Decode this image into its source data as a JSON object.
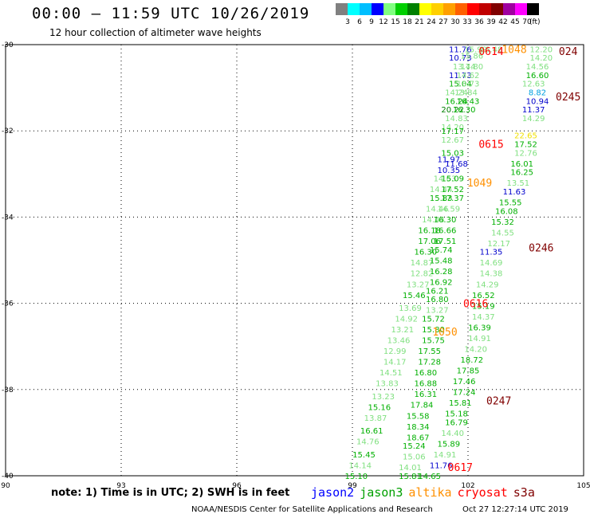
{
  "title": "00:00 – 11:59 UTC 10/26/2019",
  "subtitle": "12 hour collection of altimeter wave heights",
  "color_scale": {
    "labels": [
      "3",
      "6",
      "9",
      "12",
      "15",
      "18",
      "21",
      "24",
      "27",
      "30",
      "33",
      "36",
      "39",
      "42",
      "45",
      "70"
    ],
    "unit": "(ft)",
    "colors": [
      "#808080",
      "#00ffff",
      "#00bfff",
      "#0000ff",
      "#80ff80",
      "#00d000",
      "#008000",
      "#ffff00",
      "#ffd000",
      "#ffa000",
      "#ff6000",
      "#ff0000",
      "#c00000",
      "#800000",
      "#a000a0",
      "#ff00ff",
      "#000000"
    ]
  },
  "axes": {
    "x_ticks": [
      "90",
      "93",
      "96",
      "99",
      "102",
      "105"
    ],
    "y_ticks": [
      "-30",
      "-32",
      "-34",
      "-36",
      "-38",
      "-40"
    ]
  },
  "obs": [
    {
      "lon": 101.8,
      "lat": -30.1,
      "v": "11.76",
      "c": "#0000cc"
    },
    {
      "lon": 102.2,
      "lat": -30.1,
      "v": "15.99",
      "c": "#80e080"
    },
    {
      "lon": 102.6,
      "lat": -30.1,
      "v": "16.48",
      "c": "#80e080"
    },
    {
      "lon": 103.9,
      "lat": -30.1,
      "v": "12.20",
      "c": "#80e080"
    },
    {
      "lon": 101.8,
      "lat": -30.3,
      "v": "10.73",
      "c": "#0000cc"
    },
    {
      "lon": 102.1,
      "lat": -30.25,
      "v": "15.86",
      "c": "#80e080"
    },
    {
      "lon": 103.9,
      "lat": -30.3,
      "v": "14.20",
      "c": "#80e080"
    },
    {
      "lon": 101.9,
      "lat": -30.5,
      "v": "13.74",
      "c": "#80e080"
    },
    {
      "lon": 102.1,
      "lat": -30.5,
      "v": "14.80",
      "c": "#80e080"
    },
    {
      "lon": 103.8,
      "lat": -30.5,
      "v": "14.56",
      "c": "#80e080"
    },
    {
      "lon": 101.8,
      "lat": -30.7,
      "v": "11.73",
      "c": "#0000cc"
    },
    {
      "lon": 102.0,
      "lat": -30.7,
      "v": "14.62",
      "c": "#80e080"
    },
    {
      "lon": 103.8,
      "lat": -30.7,
      "v": "16.60",
      "c": "#00b000"
    },
    {
      "lon": 101.8,
      "lat": -30.9,
      "v": "15.04",
      "c": "#00b000"
    },
    {
      "lon": 102.0,
      "lat": -30.9,
      "v": "13.73",
      "c": "#80e080"
    },
    {
      "lon": 103.7,
      "lat": -30.9,
      "v": "12.63",
      "c": "#80e080"
    },
    {
      "lon": 101.7,
      "lat": -31.1,
      "v": "14.24",
      "c": "#80e080"
    },
    {
      "lon": 101.95,
      "lat": -31.1,
      "v": "13.84",
      "c": "#80e080"
    },
    {
      "lon": 103.8,
      "lat": -31.1,
      "v": "8.82",
      "c": "#00a0e0"
    },
    {
      "lon": 101.7,
      "lat": -31.3,
      "v": "16.24",
      "c": "#00b000"
    },
    {
      "lon": 102.0,
      "lat": -31.3,
      "v": "16.43",
      "c": "#00b000"
    },
    {
      "lon": 103.8,
      "lat": -31.3,
      "v": "10.94",
      "c": "#0000cc"
    },
    {
      "lon": 101.6,
      "lat": -31.5,
      "v": "20.22",
      "c": "#008000"
    },
    {
      "lon": 101.9,
      "lat": -31.5,
      "v": "16.30",
      "c": "#00b000"
    },
    {
      "lon": 103.7,
      "lat": -31.5,
      "v": "11.37",
      "c": "#0000cc"
    },
    {
      "lon": 101.7,
      "lat": -31.7,
      "v": "14.83",
      "c": "#80e080"
    },
    {
      "lon": 103.7,
      "lat": -31.7,
      "v": "14.29",
      "c": "#80e080"
    },
    {
      "lon": 101.6,
      "lat": -31.9,
      "v": "14.20",
      "c": "#80e080"
    },
    {
      "lon": 101.6,
      "lat": -32.0,
      "v": "17.17",
      "c": "#00b000"
    },
    {
      "lon": 103.5,
      "lat": -32.1,
      "v": "22.65",
      "c": "#f0e000"
    },
    {
      "lon": 101.6,
      "lat": -32.2,
      "v": "12.67",
      "c": "#80e080"
    },
    {
      "lon": 103.5,
      "lat": -32.3,
      "v": "17.52",
      "c": "#00b000"
    },
    {
      "lon": 101.6,
      "lat": -32.5,
      "v": "15.03",
      "c": "#00b000"
    },
    {
      "lon": 103.5,
      "lat": -32.5,
      "v": "12.76",
      "c": "#80e080"
    },
    {
      "lon": 101.5,
      "lat": -32.65,
      "v": "11.97",
      "c": "#0000cc"
    },
    {
      "lon": 101.7,
      "lat": -32.75,
      "v": "11.68",
      "c": "#0000cc"
    },
    {
      "lon": 103.4,
      "lat": -32.75,
      "v": "16.01",
      "c": "#00b000"
    },
    {
      "lon": 101.5,
      "lat": -32.9,
      "v": "10.35",
      "c": "#0000cc"
    },
    {
      "lon": 103.4,
      "lat": -32.95,
      "v": "16.25",
      "c": "#00b000"
    },
    {
      "lon": 101.4,
      "lat": -33.1,
      "v": "14.63",
      "c": "#80e080"
    },
    {
      "lon": 101.6,
      "lat": -33.1,
      "v": "15.09",
      "c": "#00b000"
    },
    {
      "lon": 103.3,
      "lat": -33.2,
      "v": "13.51",
      "c": "#80e080"
    },
    {
      "lon": 101.3,
      "lat": -33.35,
      "v": "14.44",
      "c": "#80e080"
    },
    {
      "lon": 101.6,
      "lat": -33.35,
      "v": "17.52",
      "c": "#00b000"
    },
    {
      "lon": 103.2,
      "lat": -33.4,
      "v": "11.63",
      "c": "#0000cc"
    },
    {
      "lon": 101.3,
      "lat": -33.55,
      "v": "15.83",
      "c": "#00b000"
    },
    {
      "lon": 101.6,
      "lat": -33.55,
      "v": "17.37",
      "c": "#00b000"
    },
    {
      "lon": 103.1,
      "lat": -33.65,
      "v": "15.55",
      "c": "#00b000"
    },
    {
      "lon": 101.2,
      "lat": -33.8,
      "v": "14.46",
      "c": "#80e080"
    },
    {
      "lon": 101.5,
      "lat": -33.8,
      "v": "14.59",
      "c": "#80e080"
    },
    {
      "lon": 103.0,
      "lat": -33.85,
      "v": "16.08",
      "c": "#00b000"
    },
    {
      "lon": 101.1,
      "lat": -34.05,
      "v": "14.44",
      "c": "#80e080"
    },
    {
      "lon": 101.4,
      "lat": -34.05,
      "v": "16.30",
      "c": "#00b000"
    },
    {
      "lon": 102.9,
      "lat": -34.1,
      "v": "15.32",
      "c": "#00b000"
    },
    {
      "lon": 101.0,
      "lat": -34.3,
      "v": "16.18",
      "c": "#00b000"
    },
    {
      "lon": 101.4,
      "lat": -34.3,
      "v": "16.66",
      "c": "#00b000"
    },
    {
      "lon": 102.9,
      "lat": -34.35,
      "v": "14.55",
      "c": "#80e080"
    },
    {
      "lon": 101.0,
      "lat": -34.55,
      "v": "17.06",
      "c": "#00b000"
    },
    {
      "lon": 101.4,
      "lat": -34.55,
      "v": "17.51",
      "c": "#00b000"
    },
    {
      "lon": 102.8,
      "lat": -34.6,
      "v": "12.17",
      "c": "#80e080"
    },
    {
      "lon": 100.9,
      "lat": -34.8,
      "v": "16.30",
      "c": "#00b000"
    },
    {
      "lon": 101.3,
      "lat": -34.75,
      "v": "15.74",
      "c": "#00b000"
    },
    {
      "lon": 102.6,
      "lat": -34.8,
      "v": "11.35",
      "c": "#0000cc"
    },
    {
      "lon": 100.8,
      "lat": -35.05,
      "v": "14.87",
      "c": "#80e080"
    },
    {
      "lon": 101.3,
      "lat": -35.0,
      "v": "15.48",
      "c": "#00b000"
    },
    {
      "lon": 102.6,
      "lat": -35.05,
      "v": "14.69",
      "c": "#80e080"
    },
    {
      "lon": 101.3,
      "lat": -35.25,
      "v": "16.28",
      "c": "#00b000"
    },
    {
      "lon": 100.8,
      "lat": -35.3,
      "v": "12.82",
      "c": "#80e080"
    },
    {
      "lon": 102.6,
      "lat": -35.3,
      "v": "14.38",
      "c": "#80e080"
    },
    {
      "lon": 101.3,
      "lat": -35.5,
      "v": "16.92",
      "c": "#00b000"
    },
    {
      "lon": 100.7,
      "lat": -35.55,
      "v": "13.27",
      "c": "#80e080"
    },
    {
      "lon": 102.5,
      "lat": -35.55,
      "v": "14.29",
      "c": "#80e080"
    },
    {
      "lon": 101.2,
      "lat": -35.7,
      "v": "16.21",
      "c": "#00b000"
    },
    {
      "lon": 100.6,
      "lat": -35.8,
      "v": "15.46",
      "c": "#00b000"
    },
    {
      "lon": 101.2,
      "lat": -35.9,
      "v": "16.80",
      "c": "#00b000"
    },
    {
      "lon": 102.4,
      "lat": -35.8,
      "v": "16.52",
      "c": "#00b000"
    },
    {
      "lon": 100.5,
      "lat": -36.1,
      "v": "13.69",
      "c": "#80e080"
    },
    {
      "lon": 101.2,
      "lat": -36.15,
      "v": "13.27",
      "c": "#80e080"
    },
    {
      "lon": 102.4,
      "lat": -36.05,
      "v": "15.19",
      "c": "#00b000"
    },
    {
      "lon": 100.4,
      "lat": -36.35,
      "v": "14.92",
      "c": "#80e080"
    },
    {
      "lon": 101.1,
      "lat": -36.35,
      "v": "15.72",
      "c": "#00b000"
    },
    {
      "lon": 102.4,
      "lat": -36.3,
      "v": "14.37",
      "c": "#80e080"
    },
    {
      "lon": 100.3,
      "lat": -36.6,
      "v": "13.21",
      "c": "#80e080"
    },
    {
      "lon": 101.1,
      "lat": -36.6,
      "v": "15.80",
      "c": "#00b000"
    },
    {
      "lon": 102.3,
      "lat": -36.55,
      "v": "16.39",
      "c": "#00b000"
    },
    {
      "lon": 102.3,
      "lat": -36.8,
      "v": "14.91",
      "c": "#80e080"
    },
    {
      "lon": 100.2,
      "lat": -36.85,
      "v": "13.46",
      "c": "#80e080"
    },
    {
      "lon": 101.1,
      "lat": -36.85,
      "v": "15.75",
      "c": "#00b000"
    },
    {
      "lon": 102.2,
      "lat": -37.05,
      "v": "14.20",
      "c": "#80e080"
    },
    {
      "lon": 100.1,
      "lat": -37.1,
      "v": "12.99",
      "c": "#80e080"
    },
    {
      "lon": 101.0,
      "lat": -37.1,
      "v": "17.55",
      "c": "#00b000"
    },
    {
      "lon": 102.1,
      "lat": -37.3,
      "v": "18.72",
      "c": "#00b000"
    },
    {
      "lon": 100.1,
      "lat": -37.35,
      "v": "14.17",
      "c": "#80e080"
    },
    {
      "lon": 101.0,
      "lat": -37.35,
      "v": "17.28",
      "c": "#00b000"
    },
    {
      "lon": 102.0,
      "lat": -37.55,
      "v": "17.85",
      "c": "#00b000"
    },
    {
      "lon": 100.0,
      "lat": -37.6,
      "v": "14.51",
      "c": "#80e080"
    },
    {
      "lon": 100.9,
      "lat": -37.6,
      "v": "16.80",
      "c": "#00b000"
    },
    {
      "lon": 101.9,
      "lat": -37.8,
      "v": "17.46",
      "c": "#00b000"
    },
    {
      "lon": 99.9,
      "lat": -37.85,
      "v": "13.83",
      "c": "#80e080"
    },
    {
      "lon": 100.9,
      "lat": -37.85,
      "v": "16.88",
      "c": "#00b000"
    },
    {
      "lon": 101.9,
      "lat": -38.05,
      "v": "17.24",
      "c": "#00b000"
    },
    {
      "lon": 100.9,
      "lat": -38.1,
      "v": "16.31",
      "c": "#00b000"
    },
    {
      "lon": 99.8,
      "lat": -38.15,
      "v": "13.23",
      "c": "#80e080"
    },
    {
      "lon": 101.8,
      "lat": -38.3,
      "v": "15.81",
      "c": "#00b000"
    },
    {
      "lon": 100.8,
      "lat": -38.35,
      "v": "17.84",
      "c": "#00b000"
    },
    {
      "lon": 99.7,
      "lat": -38.4,
      "v": "15.16",
      "c": "#00b000"
    },
    {
      "lon": 101.7,
      "lat": -38.55,
      "v": "15.18",
      "c": "#00b000"
    },
    {
      "lon": 100.7,
      "lat": -38.6,
      "v": "15.58",
      "c": "#00b000"
    },
    {
      "lon": 99.6,
      "lat": -38.65,
      "v": "13.87",
      "c": "#80e080"
    },
    {
      "lon": 101.7,
      "lat": -38.75,
      "v": "16.79",
      "c": "#00b000"
    },
    {
      "lon": 100.7,
      "lat": -38.85,
      "v": "18.34",
      "c": "#00b000"
    },
    {
      "lon": 99.5,
      "lat": -38.95,
      "v": "16.61",
      "c": "#00b000"
    },
    {
      "lon": 101.6,
      "lat": -39.0,
      "v": "14.40",
      "c": "#80e080"
    },
    {
      "lon": 100.7,
      "lat": -39.1,
      "v": "18.67",
      "c": "#00b000"
    },
    {
      "lon": 99.4,
      "lat": -39.2,
      "v": "14.76",
      "c": "#80e080"
    },
    {
      "lon": 101.5,
      "lat": -39.25,
      "v": "15.89",
      "c": "#00b000"
    },
    {
      "lon": 100.6,
      "lat": -39.3,
      "v": "15.24",
      "c": "#00b000"
    },
    {
      "lon": 101.4,
      "lat": -39.5,
      "v": "14.91",
      "c": "#80e080"
    },
    {
      "lon": 99.3,
      "lat": -39.5,
      "v": "15.45",
      "c": "#00b000"
    },
    {
      "lon": 100.6,
      "lat": -39.55,
      "v": "15.06",
      "c": "#80e080"
    },
    {
      "lon": 101.3,
      "lat": -39.75,
      "v": "11.76",
      "c": "#0000cc"
    },
    {
      "lon": 99.2,
      "lat": -39.75,
      "v": "14.14",
      "c": "#80e080"
    },
    {
      "lon": 100.5,
      "lat": -39.8,
      "v": "14.01",
      "c": "#80e080"
    },
    {
      "lon": 99.1,
      "lat": -40.0,
      "v": "15.10",
      "c": "#00b000"
    },
    {
      "lon": 100.5,
      "lat": -40.0,
      "v": "15.81",
      "c": "#00b000"
    },
    {
      "lon": 101.0,
      "lat": -40.0,
      "v": "14.65",
      "c": "#00b000"
    }
  ],
  "time_marks": [
    {
      "lon": 102.6,
      "lat": -30.15,
      "t": "0614",
      "c": "#ff0000"
    },
    {
      "lon": 103.2,
      "lat": -30.1,
      "t": "1048",
      "c": "#ff9000"
    },
    {
      "lon": 104.6,
      "lat": -30.15,
      "t": "024",
      "c": "#800000"
    },
    {
      "lon": 104.6,
      "lat": -31.2,
      "t": "0245",
      "c": "#800000"
    },
    {
      "lon": 102.6,
      "lat": -32.3,
      "t": "0615",
      "c": "#ff0000"
    },
    {
      "lon": 102.3,
      "lat": -33.2,
      "t": "1049",
      "c": "#ff9000"
    },
    {
      "lon": 103.9,
      "lat": -34.7,
      "t": "0246",
      "c": "#800000"
    },
    {
      "lon": 102.2,
      "lat": -36.0,
      "t": "0616",
      "c": "#ff0000"
    },
    {
      "lon": 101.4,
      "lat": -36.65,
      "t": "1050",
      "c": "#ff9000"
    },
    {
      "lon": 102.8,
      "lat": -38.25,
      "t": "0247",
      "c": "#800000"
    },
    {
      "lon": 101.8,
      "lat": -39.8,
      "t": "0617",
      "c": "#ff0000"
    }
  ],
  "note": "note:  1) Time is in UTC;  2) SWH is in feet",
  "satellites": [
    {
      "name": "jason2",
      "color": "#0000ff"
    },
    {
      "name": "jason3",
      "color": "#00a000"
    },
    {
      "name": "altika",
      "color": "#ff9000"
    },
    {
      "name": "cryosat",
      "color": "#ff0000"
    },
    {
      "name": "s3a",
      "color": "#800000"
    }
  ],
  "credit": "NOAA/NESDIS Center for Satellite Applications and Research",
  "timestamp": "Oct 27 12:27:14 UTC 2019"
}
